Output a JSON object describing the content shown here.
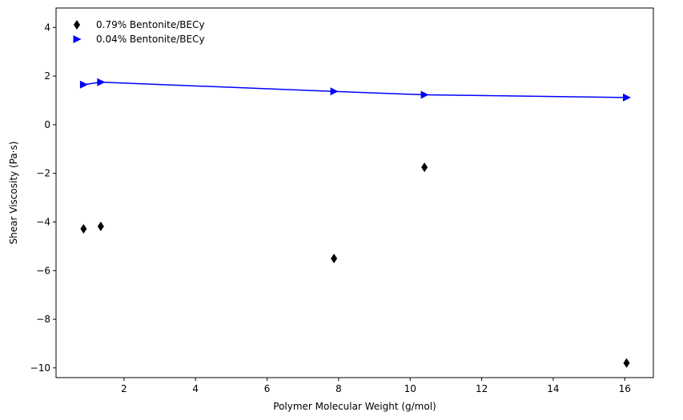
{
  "chart_data": {
    "type": "scatter",
    "title": "",
    "xlabel": "Polymer Molecular Weight (g/mol)",
    "ylabel": "Shear Viscosity (Pa·s)",
    "xlim": [
      0.1,
      16.8
    ],
    "ylim": [
      -10.4,
      4.8
    ],
    "x_ticks": [
      2,
      4,
      6,
      8,
      10,
      12,
      14,
      16
    ],
    "y_ticks": [
      4,
      2,
      0,
      -2,
      -4,
      -6,
      -8,
      -10
    ],
    "x_tick_labels": [
      "2",
      "4",
      "6",
      "8",
      "10",
      "12",
      "14",
      "16"
    ],
    "y_tick_labels": [
      "4",
      "2",
      "0",
      "−2",
      "−4",
      "−6",
      "−8",
      "−10"
    ],
    "grid": false,
    "legend_position": "top-left",
    "series": [
      {
        "name": "0.79% Bentonite/BECy",
        "marker": "thin-diamond",
        "color": "#000000",
        "line": false,
        "points": [
          {
            "x": 0.87,
            "y": -4.28
          },
          {
            "x": 1.35,
            "y": -4.18
          },
          {
            "x": 7.87,
            "y": -5.5
          },
          {
            "x": 10.4,
            "y": -1.75
          },
          {
            "x": 16.05,
            "y": -9.8
          }
        ]
      },
      {
        "name": "0.04% Bentonite/BECy",
        "marker": "triangle-right",
        "color": "#0000ff",
        "line": true,
        "points": [
          {
            "x": 0.87,
            "y": 1.65
          },
          {
            "x": 1.35,
            "y": 1.75
          },
          {
            "x": 7.87,
            "y": 1.37
          },
          {
            "x": 10.4,
            "y": 1.23
          },
          {
            "x": 16.05,
            "y": 1.12
          }
        ]
      }
    ]
  }
}
